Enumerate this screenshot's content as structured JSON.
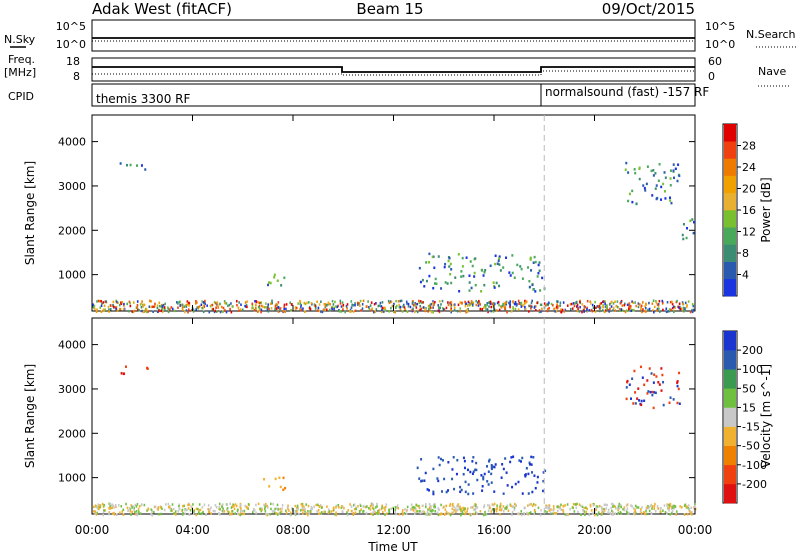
{
  "header": {
    "title": "Adak West (fitACF)",
    "beam": "Beam 15",
    "date": "09/Oct/2015"
  },
  "panels": {
    "nsky_label": "N.Sky",
    "nsky_ticks": [
      "10^5",
      "10^0"
    ],
    "nsearch_label": "N.Search",
    "nsearch_ticks": [
      "10^5",
      "10^0"
    ],
    "freq_label": "Freq.",
    "freq_unit": "[MHz]",
    "freq_ticks": [
      "18",
      "8"
    ],
    "nave_label": "Nave",
    "nave_ticks": [
      "60",
      "0"
    ],
    "cpid_label": "CPID",
    "cpid_left": "themis 3300 RF",
    "cpid_right": "normalsound (fast) -157 RF"
  },
  "colors": {
    "power": [
      "#1a34e0",
      "#2a5ab0",
      "#3c8c74",
      "#4aa85a",
      "#78c030",
      "#e8b030",
      "#f0a000",
      "#ef7a00",
      "#f04010",
      "#e00000"
    ],
    "velocity": [
      "#e01010",
      "#f04010",
      "#f08000",
      "#f0b030",
      "#c8c8c8",
      "#70c040",
      "#3a9a50",
      "#2a5ab0",
      "#1a34d0"
    ]
  },
  "chart_data": [
    {
      "type": "heatmap",
      "name": "power",
      "xlabel": "Time UT",
      "ylabel": "Slant Range [km]",
      "x_ticks": [
        "00:00",
        "04:00",
        "08:00",
        "12:00",
        "16:00",
        "20:00",
        "00:00"
      ],
      "xlim": [
        0,
        24
      ],
      "ylim": [
        180,
        4600
      ],
      "y_ticks": [
        1000,
        2000,
        3000,
        4000
      ],
      "colorbar_label": "Power [dB]",
      "colorbar_ticks": [
        "4",
        "8",
        "12",
        "16",
        "20",
        "24",
        "28"
      ],
      "colorbar_range": [
        0,
        30
      ],
      "mode_change_hour": 18,
      "echo_regions": [
        {
          "t0": 1.1,
          "t1": 2.3,
          "r0": 3350,
          "r1": 3550
        },
        {
          "t0": 6.6,
          "t1": 7.7,
          "r0": 750,
          "r1": 1050
        },
        {
          "t0": 13.0,
          "t1": 18.0,
          "r0": 650,
          "r1": 1500
        },
        {
          "t0": 21.2,
          "t1": 23.4,
          "r0": 2600,
          "r1": 3550
        },
        {
          "t0": 23.4,
          "t1": 24.0,
          "r0": 1800,
          "r1": 2400
        }
      ]
    },
    {
      "type": "heatmap",
      "name": "velocity",
      "xlabel": "Time UT",
      "ylabel": "Slant Range [km]",
      "x_ticks": [
        "00:00",
        "04:00",
        "08:00",
        "12:00",
        "16:00",
        "20:00",
        "00:00"
      ],
      "xlim": [
        0,
        24
      ],
      "ylim": [
        180,
        4600
      ],
      "y_ticks": [
        1000,
        2000,
        3000,
        4000
      ],
      "colorbar_label": "Velocity [m s^-1]",
      "colorbar_ticks": [
        "200",
        "100",
        "50",
        "15",
        "-15",
        "-50",
        "-100",
        "-200"
      ],
      "mode_change_hour": 18,
      "echo_regions": [
        {
          "t0": 1.1,
          "t1": 2.3,
          "r0": 3350,
          "r1": 3550
        },
        {
          "t0": 6.6,
          "t1": 7.7,
          "r0": 750,
          "r1": 1050
        },
        {
          "t0": 12.8,
          "t1": 18.0,
          "r0": 650,
          "r1": 1500
        },
        {
          "t0": 21.2,
          "t1": 23.4,
          "r0": 2600,
          "r1": 3550
        }
      ]
    }
  ]
}
